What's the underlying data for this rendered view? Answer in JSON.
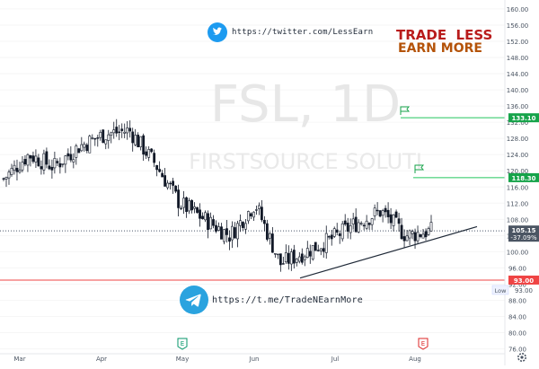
{
  "watermark": {
    "ticker": "FSL, 1D",
    "company": "FIRSTSOURCE SOLUTI"
  },
  "social": {
    "twitter": {
      "icon": "twitter-bird-icon",
      "url": "https://twitter.com/LessEarn"
    },
    "telegram": {
      "icon": "telegram-plane-icon",
      "url": "https://t.me/TradeNEarnMore"
    }
  },
  "brand": {
    "line1": "TRADE  LESS",
    "line2": "EARN MORE",
    "color1": "#b91c1c",
    "color2": "#b45309"
  },
  "price_labels": {
    "current": "105.15",
    "change": "-37.09%",
    "target1": "133.10",
    "target2": "118.30",
    "stop": "93.00",
    "stop_text": "93.00",
    "low_tag": "Low"
  },
  "event_markers": [
    {
      "kind": "earnings-icon",
      "label": "E",
      "month": "May",
      "color": "#059669"
    },
    {
      "kind": "earnings-icon",
      "label": "E",
      "month": "Aug",
      "color": "#dc2626"
    }
  ],
  "gear": {
    "icon": "gear-icon"
  },
  "colors": {
    "target": "#22c55e",
    "stop": "#ef4444",
    "current": "#475569",
    "candle": "#111827"
  },
  "chart_data": {
    "type": "candlestick",
    "ticker": "FSL",
    "timeframe": "1D",
    "y_ticks": [
      160.0,
      156.0,
      152.0,
      148.0,
      144.0,
      140.0,
      136.0,
      132.0,
      128.0,
      124.0,
      120.0,
      116.0,
      112.0,
      108.0,
      104.0,
      100.0,
      96.0,
      92.0,
      88.0,
      84.0,
      80.0,
      76.0
    ],
    "ylim": [
      74.8,
      162.2
    ],
    "x_ticks": [
      "Mar",
      "Apr",
      "May",
      "Jun",
      "Jul",
      "Aug"
    ],
    "horizontal_levels": [
      {
        "name": "target-1",
        "value": 133.1,
        "color": "#22c55e"
      },
      {
        "name": "target-2",
        "value": 118.3,
        "color": "#22c55e"
      },
      {
        "name": "current",
        "value": 105.15,
        "color": "#475569",
        "style": "dotted"
      },
      {
        "name": "stop",
        "value": 93.0,
        "color": "#ef4444"
      }
    ],
    "trendline": {
      "from": {
        "month": "mid-Jun",
        "price": 93.5
      },
      "to": {
        "month": "mid-Aug",
        "price": 106.2
      }
    },
    "price_path": [
      [
        "Mar-start",
        118
      ],
      [
        "Mar-mid",
        124
      ],
      [
        "Mar-late",
        121
      ],
      [
        "Apr-start",
        126
      ],
      [
        "Apr-mid",
        129
      ],
      [
        "Apr-late",
        130
      ],
      [
        "May-start",
        122
      ],
      [
        "May-mid",
        112
      ],
      [
        "May-late",
        108
      ],
      [
        "Jun-start",
        104
      ],
      [
        "Jun-mid",
        112
      ],
      [
        "Jun-late",
        97
      ],
      [
        "Jul-start",
        100
      ],
      [
        "Jul-mid",
        103
      ],
      [
        "Jul-late",
        107
      ],
      [
        "Aug-start",
        110
      ],
      [
        "Aug-mid",
        104
      ],
      [
        "Aug-end",
        105.15
      ]
    ]
  }
}
